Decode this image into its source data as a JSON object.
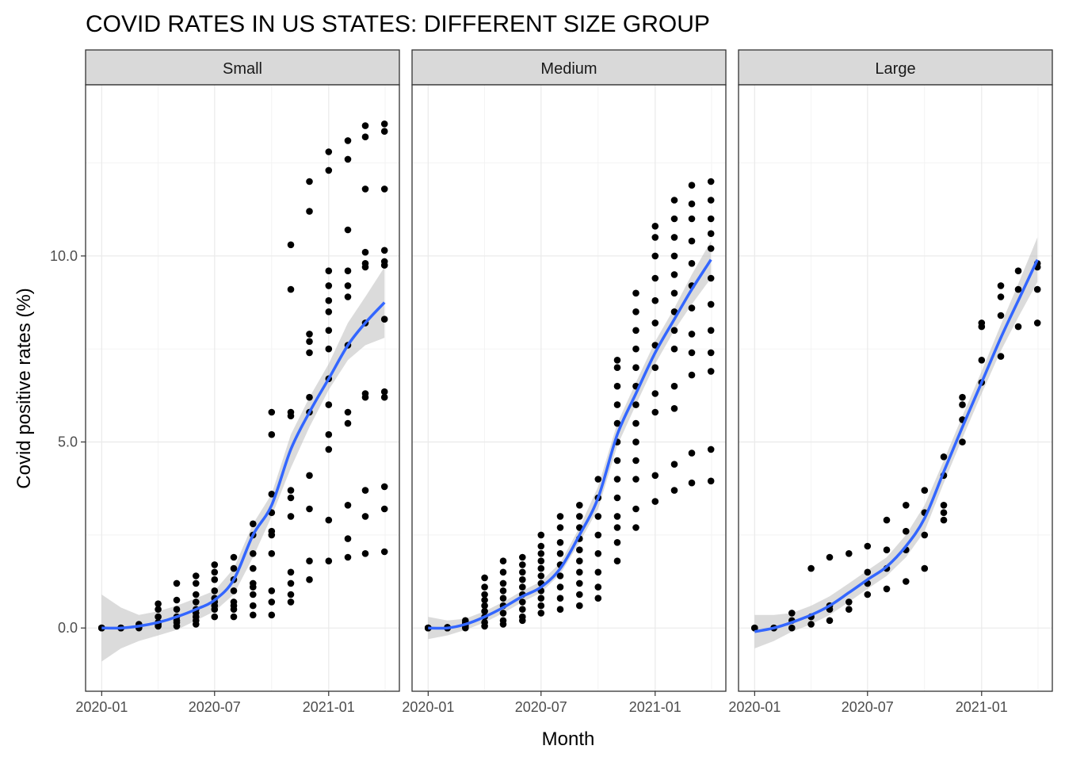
{
  "chart_data": {
    "type": "scatter",
    "title": "COVID RATES IN US STATES: DIFFERENT SIZE GROUP",
    "xlabel": "Month",
    "ylabel": "Covid positive rates (%)",
    "x_ticks": [
      "2020-01",
      "2020-07",
      "2021-01"
    ],
    "y_ticks": [
      "0.0",
      "5.0",
      "10.0"
    ],
    "xlim": [
      "2019-12-06",
      "2021-04-25"
    ],
    "ylim": [
      -1.7,
      14.6
    ],
    "grid": true,
    "point_color": "#000000",
    "smooth_color": "#3366FF",
    "ribbon_color": "#BEBEBE",
    "strip_fill": "#D9D9D9",
    "panels": [
      {
        "name": "Small",
        "points": [
          {
            "month": "2020-01",
            "y": [
              0,
              0,
              0,
              0,
              0
            ]
          },
          {
            "month": "2020-02",
            "y": [
              0,
              0,
              0,
              0,
              0
            ]
          },
          {
            "month": "2020-03",
            "y": [
              0,
              0.02,
              0.05,
              0.1,
              0.02
            ]
          },
          {
            "month": "2020-04",
            "y": [
              0.05,
              0.15,
              0.3,
              0.5,
              0.65,
              0.1
            ]
          },
          {
            "month": "2020-05",
            "y": [
              0.05,
              0.15,
              0.3,
              0.5,
              0.75,
              1.2,
              0.2
            ]
          },
          {
            "month": "2020-06",
            "y": [
              0.1,
              0.2,
              0.3,
              0.5,
              0.7,
              0.9,
              1.2,
              1.4,
              0.4
            ]
          },
          {
            "month": "2020-07",
            "y": [
              0.3,
              0.5,
              0.6,
              0.8,
              1,
              1.3,
              1.5,
              1.7,
              0.7
            ]
          },
          {
            "month": "2020-08",
            "y": [
              0.3,
              0.5,
              0.7,
              1,
              1.3,
              1.6,
              1.9,
              0.6
            ]
          },
          {
            "month": "2020-09",
            "y": [
              0.35,
              0.6,
              0.9,
              1.2,
              1.6,
              2,
              2.5,
              2.8,
              1.1
            ]
          },
          {
            "month": "2020-10",
            "y": [
              0.35,
              0.7,
              1,
              2,
              2.5,
              2.6,
              3.1,
              3.6,
              5.2,
              5.8
            ]
          },
          {
            "month": "2020-11",
            "y": [
              0.7,
              0.9,
              1.2,
              1.5,
              3,
              3.5,
              3.7,
              5.7,
              5.8,
              9.1,
              10.3
            ]
          },
          {
            "month": "2020-12",
            "y": [
              1.3,
              1.8,
              3.2,
              4.1,
              5.8,
              6.2,
              7.4,
              7.7,
              7.9,
              11.2,
              12
            ]
          },
          {
            "month": "2021-01",
            "y": [
              1.8,
              2.9,
              4.8,
              5.2,
              6,
              6.7,
              7.5,
              8,
              8.5,
              8.8,
              9.2,
              9.6,
              12.3,
              12.8
            ]
          },
          {
            "month": "2021-02",
            "y": [
              1.9,
              2.4,
              3.3,
              5.5,
              5.8,
              7.6,
              8.9,
              9.2,
              9.6,
              10.7,
              12.6,
              13.1
            ]
          },
          {
            "month": "2021-03",
            "y": [
              2,
              3,
              3.7,
              6.2,
              6.3,
              8.2,
              9.7,
              9.8,
              10.1,
              11.8,
              13.2,
              13.5
            ]
          },
          {
            "month": "2021-04",
            "y": [
              2.05,
              3.2,
              3.8,
              6.2,
              6.35,
              8.3,
              9.75,
              9.85,
              10.15,
              11.8,
              13.35,
              13.55
            ]
          }
        ],
        "smooth": [
          {
            "month": "2020-01",
            "y": 0
          },
          {
            "month": "2020-02",
            "y": 0
          },
          {
            "month": "2020-03",
            "y": 0.05
          },
          {
            "month": "2020-04",
            "y": 0.15
          },
          {
            "month": "2020-05",
            "y": 0.3
          },
          {
            "month": "2020-06",
            "y": 0.5
          },
          {
            "month": "2020-07",
            "y": 0.75
          },
          {
            "month": "2020-08",
            "y": 1.3
          },
          {
            "month": "2020-09",
            "y": 2.5
          },
          {
            "month": "2020-10",
            "y": 3.3
          },
          {
            "month": "2020-11",
            "y": 4.8
          },
          {
            "month": "2020-12",
            "y": 5.8
          },
          {
            "month": "2021-01",
            "y": 6.7
          },
          {
            "month": "2021-02",
            "y": 7.6
          },
          {
            "month": "2021-03",
            "y": 8.2
          },
          {
            "month": "2021-04",
            "y": 8.75
          }
        ],
        "ribbon_lower": [
          -0.9,
          -0.55,
          -0.35,
          -0.2,
          -0.05,
          0.2,
          0.45,
          0.9,
          1.9,
          3,
          4.3,
          5.4,
          6.4,
          7.2,
          7.6,
          7.8
        ],
        "ribbon_upper": [
          0.9,
          0.55,
          0.35,
          0.45,
          0.6,
          0.8,
          1,
          1.6,
          2.8,
          3.6,
          5.2,
          6.2,
          7.1,
          8.2,
          8.9,
          9.7
        ]
      },
      {
        "name": "Medium",
        "points": [
          {
            "month": "2020-01",
            "y": [
              0,
              0,
              0,
              0,
              0,
              0,
              0
            ]
          },
          {
            "month": "2020-02",
            "y": [
              0,
              0,
              0,
              0,
              0,
              0.02,
              0
            ]
          },
          {
            "month": "2020-03",
            "y": [
              0,
              0.05,
              0.1,
              0.15,
              0.2,
              0.05,
              0.1
            ]
          },
          {
            "month": "2020-04",
            "y": [
              0.05,
              0.15,
              0.3,
              0.45,
              0.6,
              0.75,
              0.9,
              1.1,
              1.35
            ]
          },
          {
            "month": "2020-05",
            "y": [
              0.1,
              0.2,
              0.4,
              0.6,
              0.8,
              1,
              1.2,
              1.5,
              1.8
            ]
          },
          {
            "month": "2020-06",
            "y": [
              0.2,
              0.3,
              0.5,
              0.7,
              0.9,
              1.1,
              1.3,
              1.5,
              1.7,
              1.9
            ]
          },
          {
            "month": "2020-07",
            "y": [
              0.4,
              0.6,
              0.8,
              1,
              1.2,
              1.4,
              1.6,
              1.8,
              2,
              2.2,
              2.5
            ]
          },
          {
            "month": "2020-08",
            "y": [
              0.5,
              0.8,
              1.1,
              1.4,
              1.7,
              2,
              2.3,
              2.7,
              3
            ]
          },
          {
            "month": "2020-09",
            "y": [
              0.6,
              0.9,
              1.2,
              1.5,
              1.8,
              2.1,
              2.4,
              2.7,
              3,
              3.3
            ]
          },
          {
            "month": "2020-10",
            "y": [
              0.8,
              1.1,
              1.5,
              2,
              2.5,
              3,
              3.5,
              4
            ]
          },
          {
            "month": "2020-11",
            "y": [
              1.8,
              2.3,
              2.7,
              3,
              3.5,
              4,
              4.5,
              5,
              5.5,
              6,
              6.5,
              7,
              7.2
            ]
          },
          {
            "month": "2020-12",
            "y": [
              2.7,
              3.2,
              4,
              4.5,
              5,
              5.5,
              6,
              6.5,
              7,
              7.5,
              8,
              8.5,
              9
            ]
          },
          {
            "month": "2021-01",
            "y": [
              3.4,
              4.1,
              5.8,
              6.3,
              7,
              7.6,
              8.2,
              8.8,
              9.4,
              10,
              10.5,
              10.8
            ]
          },
          {
            "month": "2021-02",
            "y": [
              3.7,
              4.4,
              5.9,
              6.5,
              7.5,
              8,
              8.5,
              9,
              9.5,
              10,
              10.5,
              11,
              11.5
            ]
          },
          {
            "month": "2021-03",
            "y": [
              3.9,
              4.7,
              6.8,
              7.4,
              7.9,
              8.6,
              9.2,
              9.8,
              10.4,
              11,
              11.4,
              11.9
            ]
          },
          {
            "month": "2021-04",
            "y": [
              3.95,
              4.8,
              6.9,
              7.4,
              8,
              8.7,
              9.4,
              10.2,
              10.6,
              11,
              11.5,
              12
            ]
          }
        ],
        "smooth": [
          {
            "month": "2020-01",
            "y": 0
          },
          {
            "month": "2020-02",
            "y": 0
          },
          {
            "month": "2020-03",
            "y": 0.1
          },
          {
            "month": "2020-04",
            "y": 0.3
          },
          {
            "month": "2020-05",
            "y": 0.55
          },
          {
            "month": "2020-06",
            "y": 0.85
          },
          {
            "month": "2020-07",
            "y": 1.1
          },
          {
            "month": "2020-08",
            "y": 1.6
          },
          {
            "month": "2020-09",
            "y": 2.5
          },
          {
            "month": "2020-10",
            "y": 3.5
          },
          {
            "month": "2020-11",
            "y": 5.2
          },
          {
            "month": "2020-12",
            "y": 6.3
          },
          {
            "month": "2021-01",
            "y": 7.4
          },
          {
            "month": "2021-02",
            "y": 8.3
          },
          {
            "month": "2021-03",
            "y": 9.1
          },
          {
            "month": "2021-04",
            "y": 9.9
          }
        ],
        "ribbon_lower": [
          -0.3,
          -0.2,
          -0.05,
          0.15,
          0.4,
          0.7,
          0.95,
          1.45,
          2.3,
          3.2,
          4.9,
          6,
          7.1,
          8,
          8.7,
          9.4
        ],
        "ribbon_upper": [
          0.3,
          0.2,
          0.25,
          0.45,
          0.7,
          1,
          1.25,
          1.75,
          2.7,
          3.8,
          5.5,
          6.6,
          7.7,
          8.6,
          9.5,
          10.4
        ]
      },
      {
        "name": "Large",
        "points": [
          {
            "month": "2020-01",
            "y": [
              0,
              0
            ]
          },
          {
            "month": "2020-02",
            "y": [
              0,
              0
            ]
          },
          {
            "month": "2020-03",
            "y": [
              0,
              0.2,
              0.4
            ]
          },
          {
            "month": "2020-04",
            "y": [
              0.1,
              0.3,
              1.6
            ]
          },
          {
            "month": "2020-05",
            "y": [
              0.2,
              0.5,
              0.6,
              1.9
            ]
          },
          {
            "month": "2020-06",
            "y": [
              0.5,
              0.7,
              2
            ]
          },
          {
            "month": "2020-07",
            "y": [
              0.9,
              1.2,
              1.5,
              2.2
            ]
          },
          {
            "month": "2020-08",
            "y": [
              1.05,
              1.6,
              2.1,
              2.9
            ]
          },
          {
            "month": "2020-09",
            "y": [
              1.25,
              2.1,
              2.6,
              3.3
            ]
          },
          {
            "month": "2020-10",
            "y": [
              1.6,
              2.5,
              3.1,
              3.7
            ]
          },
          {
            "month": "2020-11",
            "y": [
              2.9,
              3.1,
              3.3,
              4.1,
              4.6
            ]
          },
          {
            "month": "2020-12",
            "y": [
              5,
              5.6,
              6,
              6.2
            ]
          },
          {
            "month": "2021-01",
            "y": [
              6.6,
              7.2,
              8.1,
              8.2
            ]
          },
          {
            "month": "2021-02",
            "y": [
              7.3,
              8.4,
              8.9,
              9.2
            ]
          },
          {
            "month": "2021-03",
            "y": [
              8.1,
              9.1,
              9.6
            ]
          },
          {
            "month": "2021-04",
            "y": [
              8.2,
              9.1,
              9.7,
              9.8
            ]
          }
        ],
        "smooth": [
          {
            "month": "2020-01",
            "y": -0.1
          },
          {
            "month": "2020-02",
            "y": 0
          },
          {
            "month": "2020-03",
            "y": 0.15
          },
          {
            "month": "2020-04",
            "y": 0.35
          },
          {
            "month": "2020-05",
            "y": 0.6
          },
          {
            "month": "2020-06",
            "y": 0.95
          },
          {
            "month": "2020-07",
            "y": 1.3
          },
          {
            "month": "2020-08",
            "y": 1.65
          },
          {
            "month": "2020-09",
            "y": 2.2
          },
          {
            "month": "2020-10",
            "y": 2.95
          },
          {
            "month": "2020-11",
            "y": 4.2
          },
          {
            "month": "2020-12",
            "y": 5.4
          },
          {
            "month": "2021-01",
            "y": 6.6
          },
          {
            "month": "2021-02",
            "y": 7.8
          },
          {
            "month": "2021-03",
            "y": 8.8
          },
          {
            "month": "2021-04",
            "y": 9.9
          }
        ],
        "ribbon_lower": [
          -0.55,
          -0.35,
          -0.1,
          0.1,
          0.35,
          0.7,
          1.05,
          1.4,
          1.9,
          2.6,
          3.9,
          5.1,
          6.3,
          7.45,
          8.35,
          9.3
        ],
        "ribbon_upper": [
          0.35,
          0.35,
          0.4,
          0.6,
          0.85,
          1.2,
          1.55,
          1.9,
          2.5,
          3.3,
          4.5,
          5.7,
          6.9,
          8.15,
          9.25,
          10.5
        ]
      }
    ]
  }
}
